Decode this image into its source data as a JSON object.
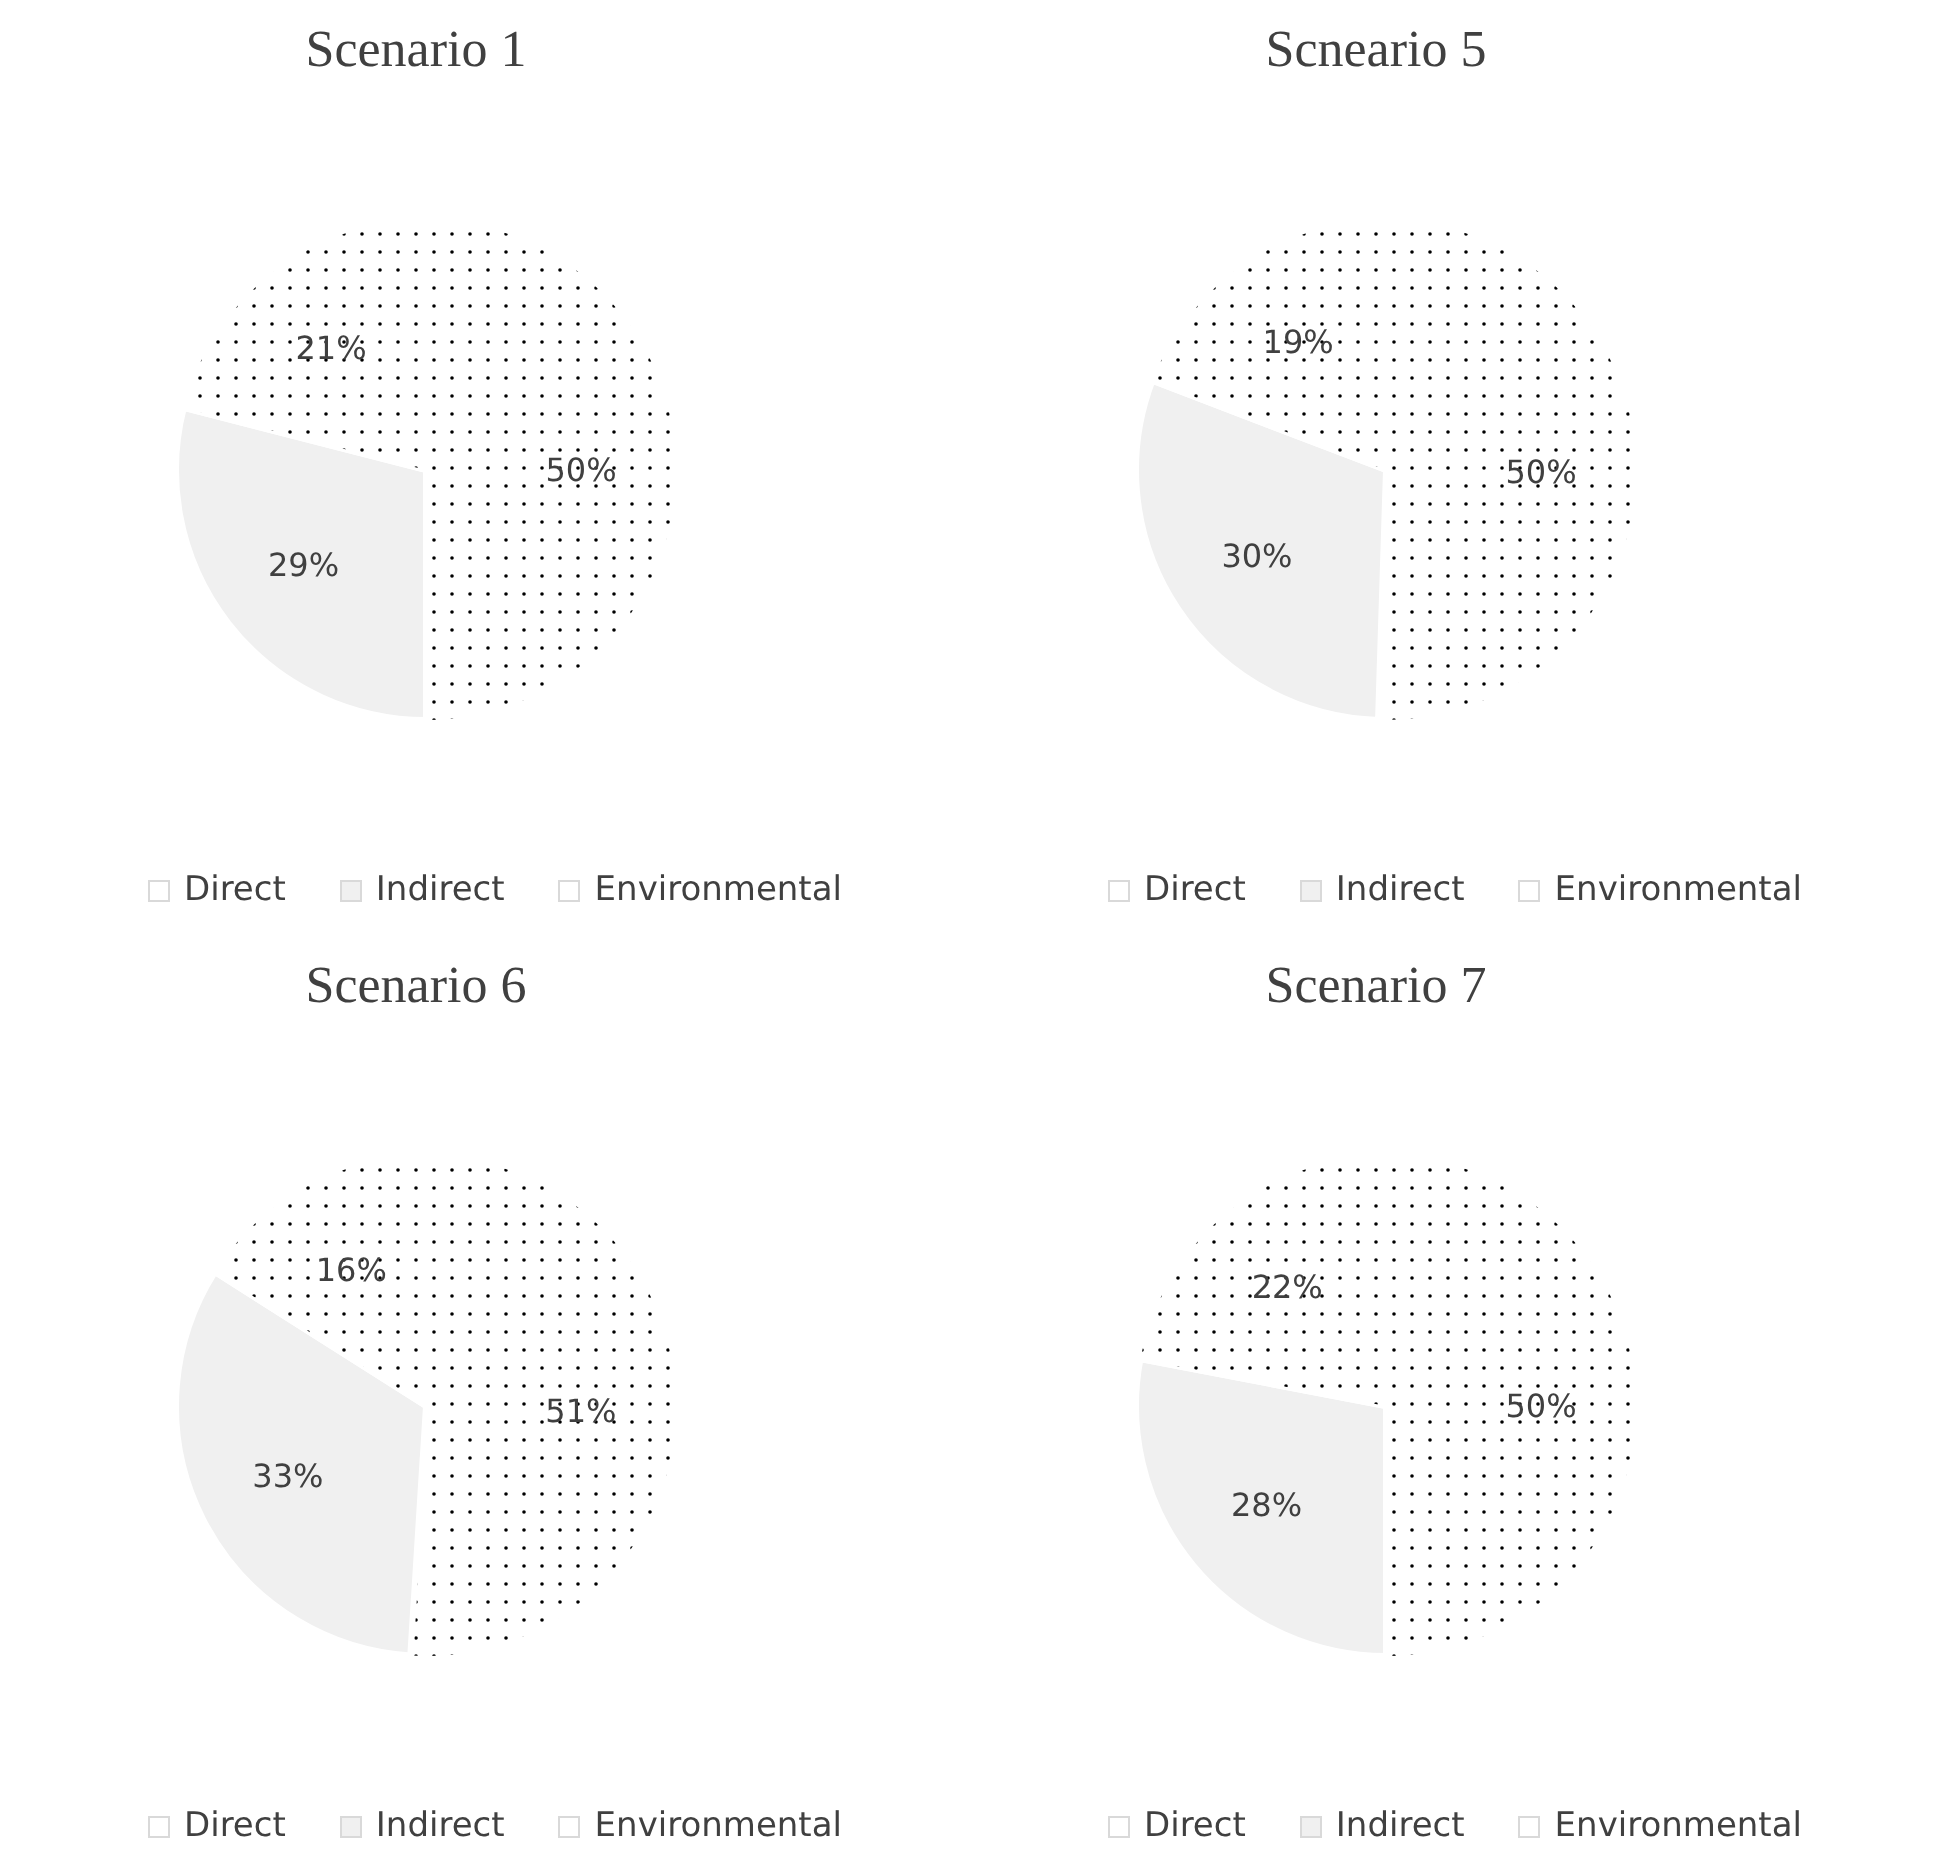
{
  "chart_data": [
    {
      "type": "pie",
      "title": "Scenario 1",
      "categories": [
        "Direct",
        "Indirect",
        "Environmental"
      ],
      "values": [
        50,
        29,
        21
      ],
      "value_labels": [
        "50%",
        "29%",
        "21%"
      ],
      "colors": [
        "#ffffff",
        "#f0f0f0",
        "#ffffff"
      ],
      "legend": "bottom"
    },
    {
      "type": "pie",
      "title": "Scneario 5",
      "categories": [
        "Direct",
        "Indirect",
        "Environmental"
      ],
      "values": [
        50,
        30,
        19
      ],
      "value_labels": [
        "50%",
        "30%",
        "19%"
      ],
      "colors": [
        "#ffffff",
        "#f0f0f0",
        "#ffffff"
      ],
      "legend": "bottom"
    },
    {
      "type": "pie",
      "title": "Scenario 6",
      "categories": [
        "Direct",
        "Indirect",
        "Environmental"
      ],
      "values": [
        51,
        33,
        16
      ],
      "value_labels": [
        "51%",
        "33%",
        "16%"
      ],
      "colors": [
        "#ffffff",
        "#f0f0f0",
        "#ffffff"
      ],
      "legend": "bottom"
    },
    {
      "type": "pie",
      "title": "Scenario 7",
      "categories": [
        "Direct",
        "Indirect",
        "Environmental"
      ],
      "values": [
        50,
        28,
        22
      ],
      "value_labels": [
        "50%",
        "28%",
        "22%"
      ],
      "colors": [
        "#ffffff",
        "#f0f0f0",
        "#ffffff"
      ],
      "legend": "bottom"
    }
  ]
}
